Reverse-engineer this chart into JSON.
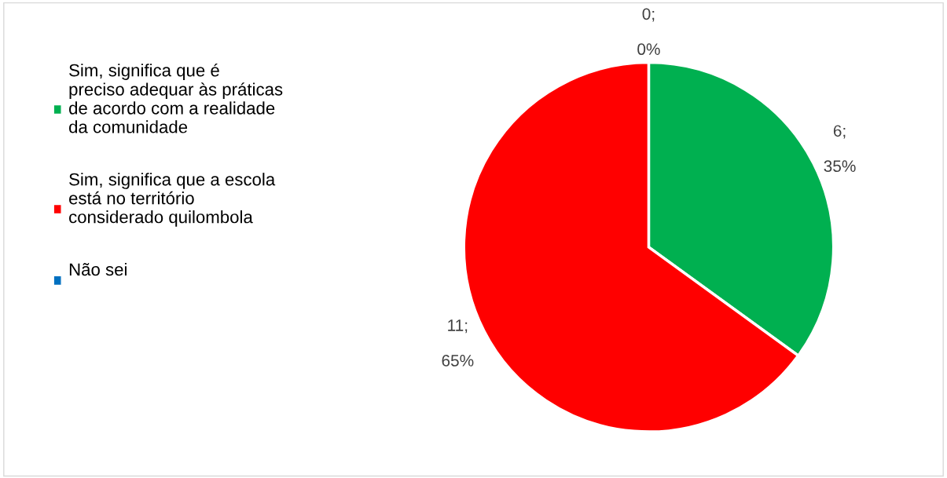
{
  "chart_data": {
    "type": "pie",
    "categories": [
      "Sim, significa que é preciso adequar às práticas de acordo com a realidade da comunidade",
      "Sim, significa que a escola está no território considerado quilombola",
      "Não sei"
    ],
    "values": [
      35,
      65,
      0
    ],
    "colors": [
      "#00b050",
      "#ff0000",
      "#0070c0"
    ],
    "value_labels": [
      "6; 35%",
      "11; 65%",
      "0; 0%"
    ],
    "legend": "left"
  }
}
